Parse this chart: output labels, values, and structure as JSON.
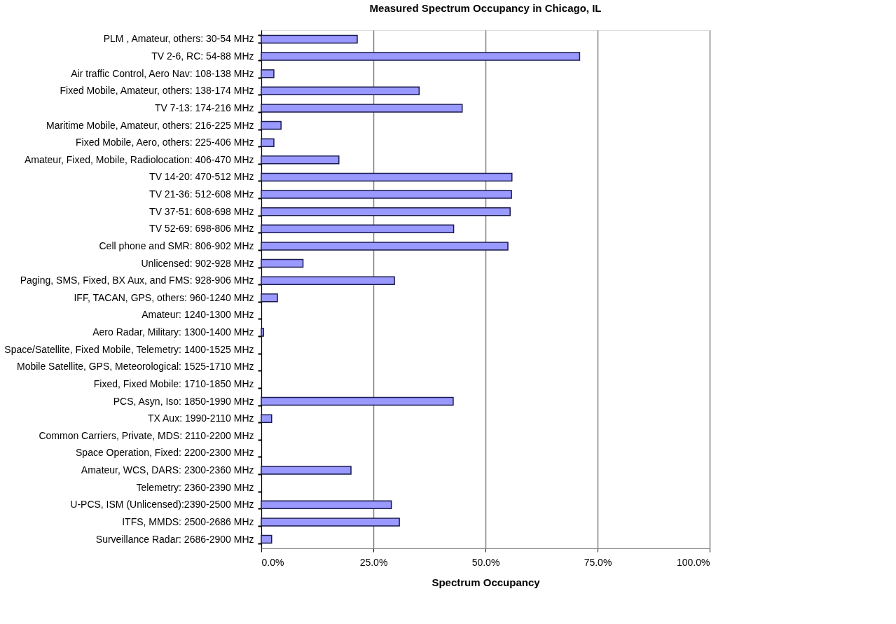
{
  "chart_data": {
    "type": "bar",
    "orientation": "horizontal",
    "title": "Measured Spectrum Occupancy in Chicago, IL",
    "xlabel": "Spectrum Occupancy",
    "categories": [
      "PLM , Amateur, others: 30-54 MHz",
      "TV 2-6, RC: 54-88 MHz",
      "Air traffic Control, Aero Nav: 108-138 MHz",
      "Fixed Mobile, Amateur, others: 138-174 MHz",
      "TV 7-13: 174-216 MHz",
      "Maritime Mobile, Amateur, others: 216-225 MHz",
      "Fixed Mobile, Aero, others: 225-406 MHz",
      "Amateur, Fixed, Mobile, Radiolocation: 406-470 MHz",
      "TV 14-20: 470-512 MHz",
      "TV 21-36: 512-608 MHz",
      "TV 37-51: 608-698 MHz",
      "TV 52-69: 698-806 MHz",
      "Cell phone and SMR: 806-902 MHz",
      "Unlicensed: 902-928 MHz",
      "Paging, SMS, Fixed, BX Aux, and FMS: 928-906 MHz",
      "IFF, TACAN, GPS, others: 960-1240 MHz",
      "Amateur: 1240-1300 MHz",
      "Aero Radar, Military: 1300-1400 MHz",
      "Space/Satellite, Fixed Mobile, Telemetry: 1400-1525 MHz",
      "Mobile Satellite, GPS, Meteorological: 1525-1710 MHz",
      "Fixed, Fixed Mobile: 1710-1850 MHz",
      "PCS, Asyn, Iso: 1850-1990 MHz",
      "TX Aux: 1990-2110 MHz",
      "Common Carriers, Private, MDS: 2110-2200 MHz",
      "Space Operation, Fixed: 2200-2300 MHz",
      "Amateur, WCS, DARS: 2300-2360 MHz",
      "Telemetry: 2360-2390 MHz",
      "U-PCS, ISM (Unlicensed):2390-2500 MHz",
      "ITFS, MMDS: 2500-2686 MHz",
      "Surveillance Radar: 2686-2900 MHz"
    ],
    "values": [
      21.4,
      71.0,
      2.8,
      35.2,
      44.8,
      4.4,
      2.8,
      17.3,
      55.9,
      55.8,
      55.5,
      42.9,
      55.0,
      9.3,
      29.7,
      3.6,
      0,
      0.5,
      0,
      0,
      0,
      42.8,
      2.3,
      0,
      0,
      20.0,
      0,
      29.0,
      30.8,
      2.3
    ],
    "color": "#9999ff",
    "xlim": [
      0,
      100
    ],
    "xticks": [
      {
        "value": 0,
        "label": "0.0%"
      },
      {
        "value": 25,
        "label": "25.0%"
      },
      {
        "value": 50,
        "label": "50.0%"
      },
      {
        "value": 75,
        "label": "75.0%"
      },
      {
        "value": 100,
        "label": "100.0%"
      }
    ],
    "grid": "x"
  }
}
